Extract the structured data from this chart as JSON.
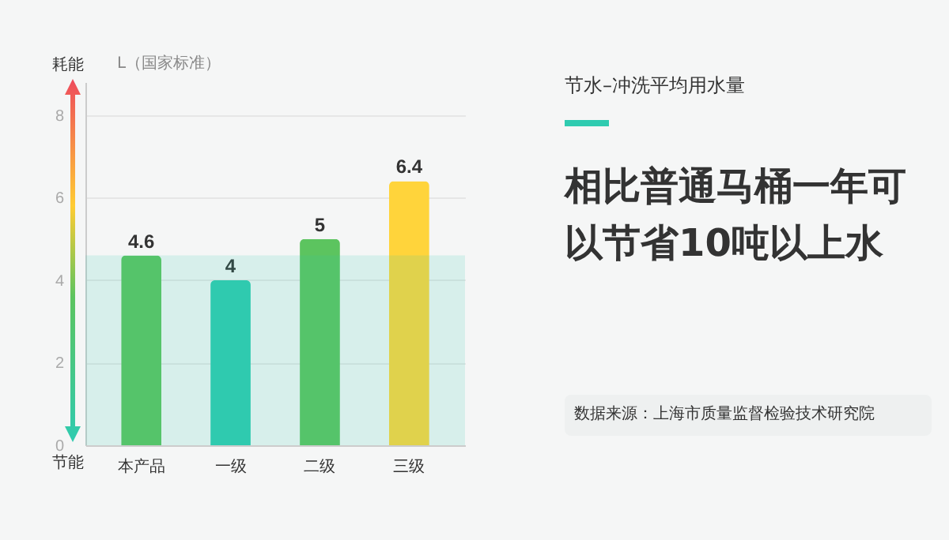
{
  "chart_data": {
    "type": "bar",
    "title": "相比普通马桶一年可以节省10吨以上水",
    "subtitle": "节水–冲洗平均用水量",
    "ylabel": "L（国家标准）",
    "categories": [
      "本产品",
      "一级",
      "二级",
      "三级"
    ],
    "values": [
      4.6,
      4,
      5,
      6.4
    ],
    "colors": [
      "#5cc45f",
      "#2fcbb0",
      "#5cc45f",
      "#ffd43b"
    ],
    "ylim": [
      0,
      8.8
    ],
    "yticks": [
      0,
      2,
      4,
      6,
      8
    ],
    "grid": "y",
    "data_labels": true,
    "bands": [
      {
        "axis": "y",
        "from": 0,
        "to": 4.6,
        "color": "#2fcbb0"
      }
    ],
    "annotations": [
      "耗能",
      "节能",
      "数据来源：上海市质量监督检验技术研究院"
    ]
  }
}
